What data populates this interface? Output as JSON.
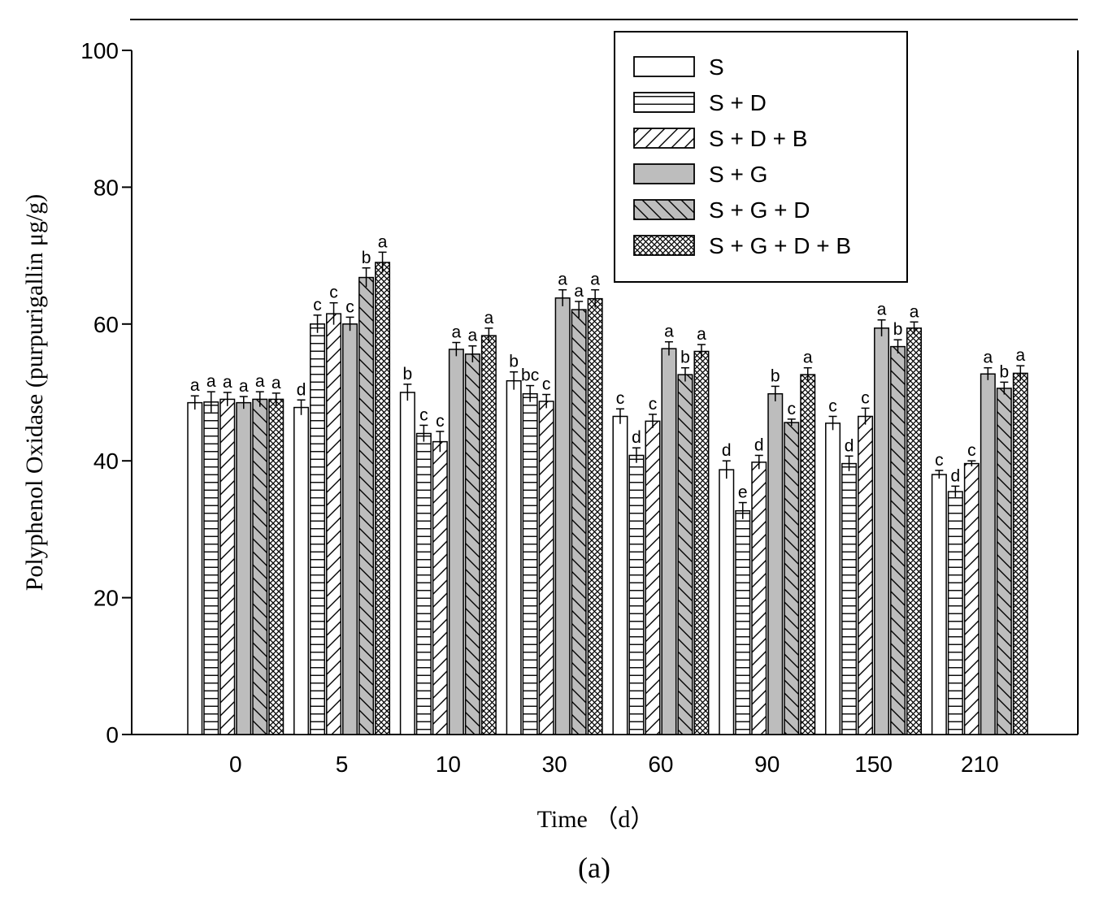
{
  "chart_data": {
    "type": "bar",
    "title": "",
    "xlabel": "Time （d）",
    "ylabel": "Polyphenol Oxidase (purpurigallin μg/g)",
    "panel_label": "(a)",
    "ylim": [
      0,
      100
    ],
    "yticks": [
      0,
      20,
      40,
      60,
      80,
      100
    ],
    "categories": [
      "0",
      "5",
      "10",
      "30",
      "60",
      "90",
      "150",
      "210"
    ],
    "legend_position": "top-right",
    "series": [
      {
        "name": "S",
        "pattern": "white",
        "values": [
          48.5,
          47.8,
          50.0,
          51.7,
          46.5,
          38.7,
          45.5,
          38.0
        ],
        "errors": [
          1.0,
          1.1,
          1.2,
          1.3,
          1.1,
          1.3,
          1.0,
          0.6
        ],
        "letters": [
          "a",
          "d",
          "b",
          "b",
          "c",
          "d",
          "c",
          "c"
        ]
      },
      {
        "name": "S + D",
        "pattern": "hlines",
        "values": [
          48.6,
          60.0,
          44.0,
          49.8,
          40.8,
          32.7,
          39.6,
          35.5
        ],
        "errors": [
          1.5,
          1.3,
          1.2,
          1.2,
          1.1,
          1.2,
          1.1,
          0.8
        ],
        "letters": [
          "a",
          "c",
          "c",
          "bc",
          "d",
          "e",
          "d",
          "d"
        ]
      },
      {
        "name": "S + D + B",
        "pattern": "fdiag",
        "values": [
          49.0,
          61.5,
          42.8,
          48.7,
          45.8,
          39.8,
          46.5,
          39.6
        ],
        "errors": [
          1.0,
          1.6,
          1.5,
          1.0,
          1.0,
          1.0,
          1.2,
          0.4
        ],
        "letters": [
          "a",
          "c",
          "c",
          "c",
          "c",
          "d",
          "c",
          "c"
        ]
      },
      {
        "name": "S + G",
        "pattern": "gray",
        "values": [
          48.5,
          60.0,
          56.3,
          63.8,
          56.4,
          49.8,
          59.4,
          52.7
        ],
        "errors": [
          0.9,
          1.0,
          1.0,
          1.2,
          1.0,
          1.1,
          1.2,
          0.9
        ],
        "letters": [
          "a",
          "c",
          "a",
          "a",
          "a",
          "b",
          "a",
          "a"
        ]
      },
      {
        "name": "S + G + D",
        "pattern": "gray-bdiag",
        "values": [
          49.0,
          66.8,
          55.6,
          62.1,
          52.6,
          45.6,
          56.7,
          50.6
        ],
        "errors": [
          1.1,
          1.4,
          1.2,
          1.2,
          1.0,
          0.5,
          1.0,
          0.9
        ],
        "letters": [
          "a",
          "b",
          "a",
          "a",
          "b",
          "c",
          "b",
          "b"
        ]
      },
      {
        "name": "S + G + D + B",
        "pattern": "crosshatch",
        "values": [
          49.0,
          69.0,
          58.3,
          63.7,
          56.0,
          52.6,
          59.4,
          52.8
        ],
        "errors": [
          0.9,
          1.5,
          1.1,
          1.3,
          1.0,
          1.0,
          0.9,
          1.1
        ],
        "letters": [
          "a",
          "a",
          "a",
          "a",
          "a",
          "a",
          "a",
          "a"
        ]
      }
    ]
  },
  "colors": {
    "gray_fill": "#bdbdbd",
    "white_fill": "#ffffff",
    "stroke": "#000000"
  }
}
